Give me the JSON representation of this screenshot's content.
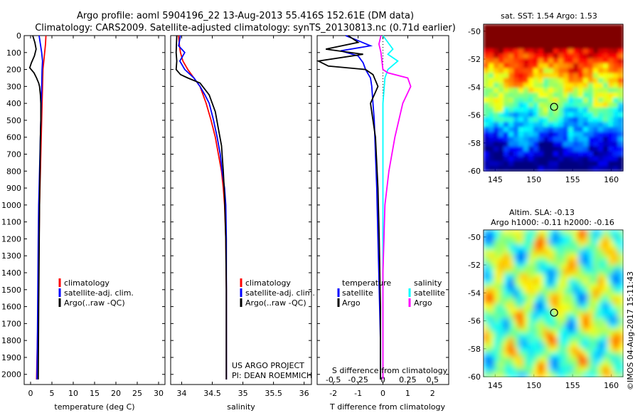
{
  "header": {
    "title_line1": "Argo profile: aoml 5904196_22 13-Aug-2013 55.416S 152.61E (DM data)",
    "title_line2": "Climatology: CARS2009. Satellite-adjusted climatology: synTS_20130813.nc (0.71d earlier)"
  },
  "colors": {
    "climatology": "#ff0000",
    "satellite": "#0000ff",
    "argo": "#000000",
    "salinity_satellite": "#00ffff",
    "salinity_argo": "#ff00ff"
  },
  "chart_data": [
    {
      "id": "temperature",
      "type": "line",
      "xlabel": "temperature (deg C)",
      "ylabel": "",
      "xlim": [
        -1.5,
        31.5
      ],
      "ylim": [
        2060,
        0
      ],
      "xticks": [
        0,
        5,
        10,
        15,
        20,
        25,
        30
      ],
      "xtick_labels": [
        "0",
        "5",
        "10",
        "15",
        "20",
        "25",
        "30"
      ],
      "yticks": [
        0,
        100,
        200,
        300,
        400,
        500,
        600,
        700,
        800,
        900,
        1000,
        1100,
        1200,
        1300,
        1400,
        1500,
        1600,
        1700,
        1800,
        1900,
        2000
      ],
      "ytick_labels": [
        "0",
        "100",
        "200",
        "300",
        "400",
        "500",
        "600",
        "700",
        "800",
        "900",
        "1000",
        "1100",
        "1200",
        "1300",
        "1400",
        "1500",
        "1600",
        "1700",
        "1800",
        "1900",
        "2000"
      ],
      "legend": [
        "climatology",
        "satellite-adj. clim.",
        "Argo(..raw -QC)"
      ],
      "legend_colors": [
        "#ff0000",
        "#0000ff",
        "#000000"
      ],
      "series": [
        {
          "name": "climatology",
          "color": "#ff0000",
          "x": [
            3.6,
            3.5,
            3.3,
            3.1,
            2.9,
            2.8,
            2.7,
            2.6,
            2.5,
            2.4,
            2.3,
            2.2,
            2.1,
            2.0,
            1.9,
            1.8,
            1.6,
            1.4
          ],
          "y": [
            0,
            50,
            100,
            150,
            200,
            300,
            400,
            500,
            600,
            700,
            800,
            900,
            1000,
            1200,
            1400,
            1600,
            1800,
            2030
          ]
        },
        {
          "name": "satellite-adj. clim.",
          "color": "#0000ff",
          "x": [
            2.0,
            2.3,
            2.6,
            2.8,
            2.7,
            2.6,
            2.5,
            2.4,
            2.3,
            2.2,
            2.1,
            2.0,
            1.9,
            1.8,
            1.7,
            1.6,
            1.5
          ],
          "y": [
            0,
            50,
            100,
            150,
            200,
            300,
            400,
            500,
            600,
            700,
            800,
            900,
            1000,
            1200,
            1500,
            1800,
            2030
          ]
        },
        {
          "name": "Argo(..raw -QC)",
          "color": "#000000",
          "x": [
            0.5,
            1.0,
            1.3,
            0.9,
            0.2,
            -0.2,
            0.8,
            1.4,
            1.9,
            2.1,
            2.3,
            2.4,
            2.4,
            2.3,
            2.2,
            2.1,
            2.0,
            1.9,
            1.8
          ],
          "y": [
            0,
            40,
            80,
            120,
            160,
            190,
            220,
            250,
            280,
            300,
            350,
            400,
            500,
            600,
            800,
            1000,
            1300,
            1600,
            2030
          ]
        }
      ]
    },
    {
      "id": "salinity",
      "type": "line",
      "xlabel": "salinity",
      "ylabel": "",
      "xlim": [
        33.82,
        36.12
      ],
      "ylim": [
        2060,
        0
      ],
      "xticks": [
        34,
        34.5,
        35,
        35.5,
        36
      ],
      "xtick_labels": [
        "34",
        "34.5",
        "35",
        "35.5",
        "36"
      ],
      "legend": [
        "climatology",
        "satellite-adj. clim.",
        "Argo(..raw -QC)"
      ],
      "legend_colors": [
        "#ff0000",
        "#0000ff",
        "#000000"
      ],
      "annotation": [
        "US ARGO PROJECT",
        "PI: DEAN ROEMMICH"
      ],
      "series": [
        {
          "name": "climatology",
          "color": "#ff0000",
          "x": [
            33.95,
            33.96,
            33.98,
            34.02,
            34.1,
            34.2,
            34.3,
            34.4,
            34.48,
            34.55,
            34.6,
            34.65,
            34.68,
            34.7,
            34.72,
            34.73,
            34.73,
            34.73
          ],
          "y": [
            0,
            50,
            100,
            150,
            200,
            250,
            300,
            400,
            500,
            600,
            700,
            800,
            900,
            1000,
            1200,
            1500,
            1800,
            2030
          ]
        },
        {
          "name": "satellite-adj. clim.",
          "color": "#0000ff",
          "x": [
            33.98,
            33.95,
            34.05,
            33.97,
            34.05,
            34.2,
            34.3,
            34.38,
            34.45,
            34.52,
            34.58,
            34.63,
            34.66,
            34.7,
            34.72,
            34.73,
            34.73,
            34.73
          ],
          "y": [
            0,
            60,
            100,
            150,
            200,
            250,
            300,
            350,
            400,
            500,
            600,
            700,
            800,
            900,
            1000,
            1200,
            1500,
            2030
          ]
        },
        {
          "name": "Argo(..raw -QC)",
          "color": "#000000",
          "x": [
            33.92,
            33.91,
            33.92,
            33.91,
            33.98,
            34.1,
            34.3,
            34.45,
            34.55,
            34.6,
            34.65,
            34.68,
            34.7,
            34.72,
            34.73,
            34.73
          ],
          "y": [
            0,
            100,
            150,
            200,
            230,
            250,
            280,
            350,
            450,
            550,
            650,
            800,
            950,
            1200,
            1500,
            2030
          ]
        }
      ]
    },
    {
      "id": "difference",
      "type": "line",
      "xlabel": "T difference from climatology",
      "xlabel_top": "S difference from climatology",
      "ylabel": "",
      "xlim": [
        -2.65,
        2.65
      ],
      "ylim": [
        2060,
        0
      ],
      "xticks": [
        -2,
        -1,
        0,
        1,
        2
      ],
      "xtick_labels": [
        "-2",
        "-1",
        "0",
        "1",
        "2"
      ],
      "sticks_label": [
        "-0.5",
        "-0.25",
        "0",
        "0.25",
        "0.5"
      ],
      "sticks_value": [
        -0.5,
        -0.25,
        0,
        0.25,
        0.5
      ],
      "legend_temperature_title": "temperature",
      "legend_salinity_title": "salinity",
      "legend_temperature": [
        "satellite",
        "Argo"
      ],
      "legend_salinity": [
        "satellite",
        "Argo"
      ],
      "series": [
        {
          "name": "temperature satellite",
          "color": "#0000ff",
          "x": [
            -1.5,
            -1.0,
            -0.5,
            -1.7,
            -1.0,
            -0.8,
            -0.7,
            -0.5,
            -0.45,
            -0.4,
            -0.35,
            -0.3,
            -0.25,
            -0.2,
            -0.15,
            -0.1,
            -0.1
          ],
          "y": [
            0,
            30,
            60,
            90,
            120,
            160,
            200,
            250,
            300,
            400,
            500,
            700,
            900,
            1200,
            1500,
            1800,
            2030
          ]
        },
        {
          "name": "temperature Argo",
          "color": "#000000",
          "x": [
            -1.4,
            -1.0,
            -2.3,
            -0.8,
            -2.6,
            -2.2,
            -0.7,
            -0.4,
            -0.2,
            -0.5,
            -0.3,
            -0.2,
            -0.15,
            -0.1,
            -0.1
          ],
          "y": [
            0,
            40,
            80,
            110,
            150,
            180,
            200,
            230,
            300,
            400,
            600,
            900,
            1200,
            1600,
            2030
          ]
        },
        {
          "name": "salinity satellite",
          "color": "#00ffff",
          "x": [
            0.0,
            0.05,
            0.1,
            0.05,
            0.15,
            0.05,
            0.02,
            0.0,
            0.0,
            0.0,
            0.0
          ],
          "y": [
            0,
            40,
            80,
            110,
            150,
            200,
            250,
            400,
            800,
            1500,
            2030
          ]
        },
        {
          "name": "salinity Argo",
          "color": "#ff00ff",
          "x": [
            -0.02,
            -0.04,
            -0.02,
            0.0,
            0.05,
            0.25,
            0.28,
            0.2,
            0.12,
            0.06,
            0.02,
            0.0,
            0.0
          ],
          "y": [
            0,
            50,
            100,
            200,
            220,
            250,
            300,
            400,
            600,
            800,
            1000,
            1400,
            2030
          ]
        }
      ]
    },
    {
      "id": "sst_map",
      "type": "heatmap",
      "title": "sat. SST: 1.54  Argo: 1.53",
      "xlim": [
        143.5,
        161.5
      ],
      "ylim": [
        -60,
        -49.5
      ],
      "xticks": [
        145,
        150,
        155,
        160
      ],
      "xtick_labels": [
        "145",
        "150",
        "155",
        "160"
      ],
      "yticks": [
        -50,
        -52,
        -54,
        -56,
        -58,
        -60
      ],
      "ytick_labels": [
        "-50",
        "-52",
        "-54",
        "-56",
        "-58",
        "-60"
      ],
      "sat_value": 1.54,
      "argo_value": 1.53,
      "profile_marker": {
        "lon": 152.61,
        "lat": -55.416
      }
    },
    {
      "id": "sla_map",
      "type": "heatmap",
      "title": "Altim. SLA: -0.13",
      "subtitle": "Argo h1000: -0.11 h2000: -0.16",
      "xlim": [
        143.5,
        161.5
      ],
      "ylim": [
        -60,
        -49.5
      ],
      "xticks": [
        145,
        150,
        155,
        160
      ],
      "xtick_labels": [
        "145",
        "150",
        "155",
        "160"
      ],
      "yticks": [
        -50,
        -52,
        -54,
        -56,
        -58,
        -60
      ],
      "ytick_labels": [
        "-50",
        "-52",
        "-54",
        "-56",
        "-58",
        "-60"
      ],
      "sla_value": -0.13,
      "profile_marker": {
        "lon": 152.61,
        "lat": -55.416
      }
    }
  ],
  "footer": {
    "watermark": "©IMOS 04-Aug-2017 15:11:43"
  }
}
